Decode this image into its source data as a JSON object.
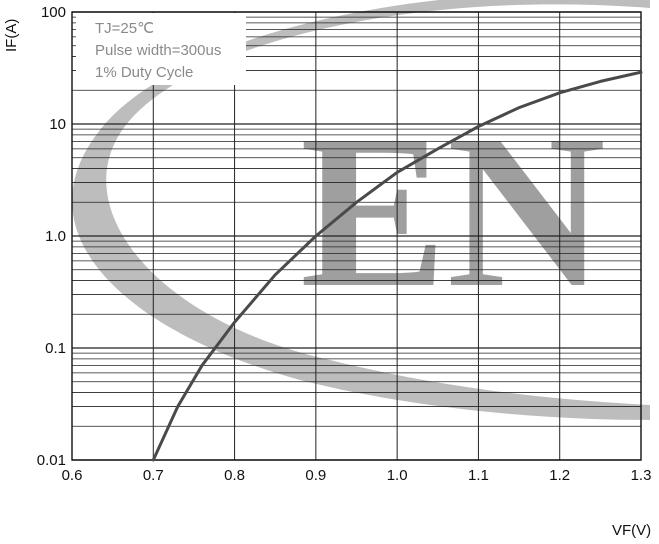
{
  "chart_data": {
    "type": "line",
    "x_label": "VF(V)",
    "y_label": "IF(A)",
    "xlim": [
      0.6,
      1.3
    ],
    "ylim": [
      0.01,
      100
    ],
    "y_scale": "log",
    "grid": true,
    "x_ticks": [
      "0.6",
      "0.7",
      "0.8",
      "0.9",
      "1.0",
      "1.1",
      "1.2",
      "1.3"
    ],
    "y_ticks": [
      {
        "value": 0.01,
        "label": "0.01"
      },
      {
        "value": 0.1,
        "label": "0.1"
      },
      {
        "value": 1,
        "label": "1.0"
      },
      {
        "value": 10,
        "label": "10"
      },
      {
        "value": 100,
        "label": "100"
      }
    ],
    "annotations": [
      "TJ=25℃",
      "Pulse width=300us",
      "1% Duty Cycle"
    ],
    "watermark": "EN",
    "series": [
      {
        "x": [
          0.7,
          0.73,
          0.76,
          0.8,
          0.85,
          0.9,
          0.95,
          1.0,
          1.05,
          1.1,
          1.15,
          1.2,
          1.25,
          1.3
        ],
        "y": [
          0.01,
          0.03,
          0.07,
          0.17,
          0.45,
          1.0,
          2.0,
          3.7,
          6.0,
          9.5,
          14,
          19,
          24,
          29
        ]
      }
    ]
  }
}
